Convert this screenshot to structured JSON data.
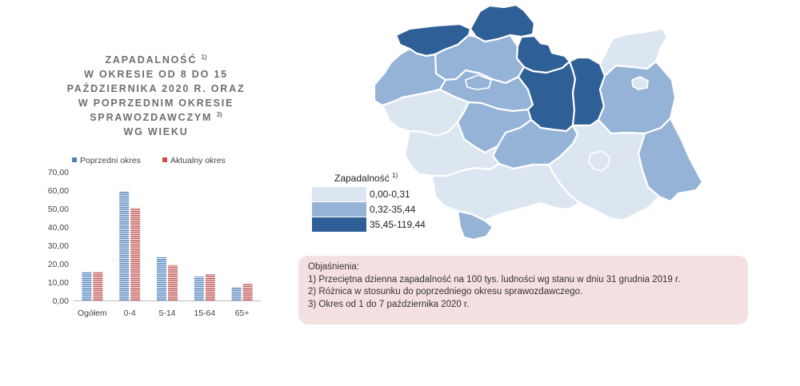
{
  "title": {
    "line1": "ZAPADALNOŚĆ",
    "line1_sup": "1)",
    "line2": "W OKRESIE OD 8 DO 15",
    "line3": "PAŹDZIERNIKA 2020 R. ORAZ",
    "line4": "W POPRZEDNIM OKRESIE",
    "line5": "SPRAWOZDAWCZYM",
    "line5_sup": "3)",
    "line6": "WG WIEKU"
  },
  "chart_data": {
    "type": "bar",
    "title": "ZAPADALNOŚĆ 1) W OKRESIE OD 8 DO 15 PAŹDZIERNIKA 2020 R. ORAZ W POPRZEDNIM OKRESIE SPRAWOZDAWCZYM 3) WG WIEKU",
    "categories": [
      "Ogółem",
      "0-4",
      "5-14",
      "15-64",
      "65+"
    ],
    "series": [
      {
        "name": "Poprzedni okres",
        "values": [
          15.5,
          59.5,
          23.5,
          13,
          7
        ],
        "color": "#4f81bd"
      },
      {
        "name": "Aktualny okres",
        "values": [
          15.5,
          50.3,
          19.2,
          14.2,
          9
        ],
        "color": "#c0504d"
      }
    ],
    "yticks": [
      "70,00",
      "60,00",
      "50,00",
      "40,00",
      "30,00",
      "20,00",
      "10,00",
      "0,00"
    ],
    "ylim": [
      0,
      70
    ],
    "legend": "top",
    "grid": false
  },
  "map": {
    "legend_title": "Zapadalność",
    "legend_title_sup": "1)",
    "legend": [
      {
        "label": "0,00-0,31",
        "color": "#dce6f1"
      },
      {
        "label": "0,32-35,44",
        "color": "#95b3d7"
      },
      {
        "label": "35,45-119,44",
        "color": "#2e5f96"
      }
    ]
  },
  "notes": {
    "heading": "Objaśnienia:",
    "items": [
      "1) Przeciętna dzienna zapadalność na 100 tys. ludności wg stanu w dniu 31 grudnia 2019 r.",
      "2) Różnica w stosunku do poprzedniego okresu sprawozdawczego.",
      "3) Okres od 1 do 7 października 2020 r."
    ]
  }
}
